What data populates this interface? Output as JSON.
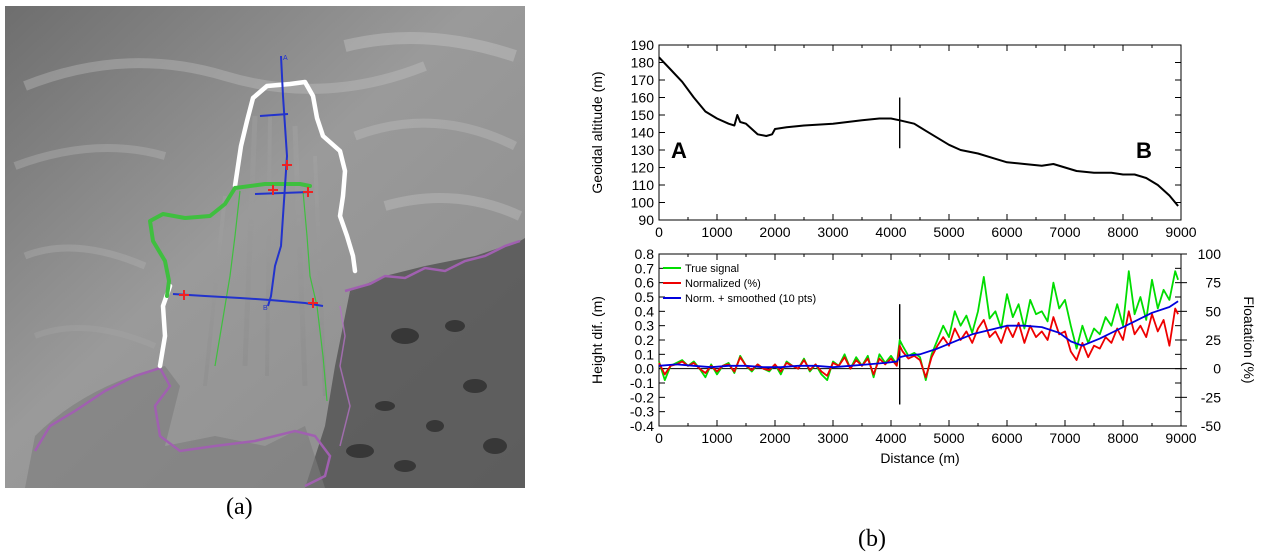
{
  "captions": {
    "a": "(a)",
    "b": "(b)"
  },
  "map": {
    "profile_labels": [
      "A",
      "B"
    ],
    "colors": {
      "background": "#8a8a8a",
      "outline_white": "#ffffff",
      "outline_green": "#3fbf3f",
      "profile_blue": "#2233cc",
      "markers_red": "#ee2222",
      "coast_purple": "#a060b0",
      "sea_dark": "#4a4a4a"
    }
  },
  "chart_data": [
    {
      "type": "line",
      "title": "",
      "xlabel": "",
      "ylabel": "Geoidal altitude (m)",
      "xlim": [
        0,
        9000
      ],
      "ylim": [
        90,
        190
      ],
      "xticks": [
        0,
        1000,
        2000,
        3000,
        4000,
        5000,
        6000,
        7000,
        8000,
        9000
      ],
      "yticks": [
        90,
        100,
        110,
        120,
        130,
        140,
        150,
        160,
        170,
        180,
        190
      ],
      "annotations": {
        "left": "A",
        "right": "B",
        "marker_x": 4150,
        "marker_range": [
          131,
          160
        ]
      },
      "series": [
        {
          "color": "#000000",
          "x": [
            0,
            200,
            400,
            600,
            800,
            1000,
            1200,
            1300,
            1350,
            1400,
            1500,
            1700,
            1850,
            1950,
            2000,
            2200,
            2500,
            3000,
            3500,
            3800,
            4000,
            4150,
            4400,
            4600,
            4800,
            5000,
            5200,
            5500,
            5800,
            6000,
            6300,
            6600,
            6800,
            7000,
            7200,
            7500,
            7800,
            8000,
            8200,
            8400,
            8600,
            8800,
            8950
          ],
          "y": [
            183,
            176,
            169,
            160,
            152,
            148,
            145,
            144,
            150,
            146,
            145,
            139,
            138,
            139,
            142,
            143,
            144,
            145,
            147,
            148,
            148,
            147,
            145,
            141,
            137,
            133,
            130,
            128,
            125,
            123,
            122,
            121,
            122,
            120,
            118,
            117,
            117,
            116,
            116,
            114,
            110,
            104,
            98
          ]
        }
      ]
    },
    {
      "type": "line",
      "title": "",
      "xlabel": "Distance (m)",
      "ylabel": "Height dif. (m)",
      "y2label": "Floatation (%)",
      "xlim": [
        0,
        9000
      ],
      "ylim": [
        -0.4,
        0.8
      ],
      "y2lim": [
        -50,
        100
      ],
      "xticks": [
        0,
        1000,
        2000,
        3000,
        4000,
        5000,
        6000,
        7000,
        8000,
        9000
      ],
      "yticks": [
        -0.4,
        -0.3,
        -0.2,
        -0.1,
        0.0,
        0.1,
        0.2,
        0.3,
        0.4,
        0.5,
        0.6,
        0.7,
        0.8
      ],
      "ytick_labels": [
        "-0.4",
        "-0.3",
        "-0.2",
        "-0.1",
        "0.0",
        "0.1",
        "0.2",
        "0.3",
        "0.4",
        "0.5",
        "0.6",
        "0.7",
        "0.8"
      ],
      "y2ticks": [
        -50,
        -25,
        0,
        25,
        50,
        75,
        100
      ],
      "legend": "top-left",
      "annotations": {
        "marker_x": 4150,
        "marker_range": [
          -0.25,
          0.45
        ],
        "zero_line": 0
      },
      "series": [
        {
          "name": "True signal",
          "color": "#00dd00",
          "x": [
            0,
            100,
            200,
            300,
            400,
            500,
            600,
            700,
            800,
            900,
            1000,
            1100,
            1200,
            1300,
            1400,
            1500,
            1600,
            1700,
            1800,
            1900,
            2000,
            2100,
            2200,
            2300,
            2400,
            2500,
            2600,
            2700,
            2800,
            2900,
            3000,
            3100,
            3200,
            3300,
            3400,
            3500,
            3600,
            3700,
            3800,
            3900,
            4000,
            4100,
            4150,
            4200,
            4300,
            4400,
            4500,
            4600,
            4700,
            4800,
            4900,
            5000,
            5100,
            5200,
            5300,
            5400,
            5500,
            5600,
            5700,
            5800,
            5900,
            6000,
            6100,
            6200,
            6300,
            6400,
            6500,
            6600,
            6700,
            6800,
            6900,
            7000,
            7100,
            7200,
            7300,
            7400,
            7500,
            7600,
            7700,
            7800,
            7900,
            8000,
            8100,
            8200,
            8300,
            8400,
            8500,
            8600,
            8700,
            8800,
            8900,
            8950
          ],
          "y": [
            0.05,
            -0.08,
            0.02,
            0.04,
            0.06,
            0.02,
            0.05,
            0.0,
            -0.06,
            0.03,
            -0.04,
            0.02,
            0.04,
            -0.03,
            0.09,
            0.02,
            -0.02,
            0.03,
            0.0,
            -0.02,
            0.03,
            -0.04,
            0.05,
            0.02,
            0.0,
            0.07,
            -0.02,
            0.03,
            -0.04,
            -0.08,
            0.05,
            0.02,
            0.1,
            0.0,
            0.08,
            0.02,
            0.09,
            -0.06,
            0.1,
            0.04,
            0.09,
            0.03,
            0.2,
            0.16,
            0.09,
            0.11,
            0.08,
            -0.08,
            0.1,
            0.2,
            0.3,
            0.22,
            0.4,
            0.3,
            0.37,
            0.25,
            0.4,
            0.64,
            0.35,
            0.4,
            0.28,
            0.52,
            0.36,
            0.45,
            0.28,
            0.48,
            0.38,
            0.4,
            0.33,
            0.6,
            0.42,
            0.48,
            0.3,
            0.14,
            0.3,
            0.18,
            0.28,
            0.24,
            0.36,
            0.3,
            0.45,
            0.3,
            0.68,
            0.38,
            0.5,
            0.34,
            0.62,
            0.42,
            0.55,
            0.48,
            0.68,
            0.62
          ]
        },
        {
          "name": "Normalized (%)",
          "color": "#ee0000",
          "x": [
            0,
            100,
            200,
            300,
            400,
            500,
            600,
            700,
            800,
            900,
            1000,
            1100,
            1200,
            1300,
            1400,
            1500,
            1600,
            1700,
            1800,
            1900,
            2000,
            2100,
            2200,
            2300,
            2400,
            2500,
            2600,
            2700,
            2800,
            2900,
            3000,
            3100,
            3200,
            3300,
            3400,
            3500,
            3600,
            3700,
            3800,
            3900,
            4000,
            4100,
            4150,
            4200,
            4300,
            4400,
            4500,
            4600,
            4700,
            4800,
            4900,
            5000,
            5100,
            5200,
            5300,
            5400,
            5500,
            5600,
            5700,
            5800,
            5900,
            6000,
            6100,
            6200,
            6300,
            6400,
            6500,
            6600,
            6700,
            6800,
            6900,
            7000,
            7100,
            7200,
            7300,
            7400,
            7500,
            7600,
            7700,
            7800,
            7900,
            8000,
            8100,
            8200,
            8300,
            8400,
            8500,
            8600,
            8700,
            8800,
            8900,
            8950
          ],
          "y": [
            0.04,
            -0.04,
            0.02,
            0.03,
            0.05,
            0.02,
            0.04,
            0.0,
            -0.03,
            0.02,
            -0.02,
            0.02,
            0.03,
            -0.02,
            0.08,
            0.02,
            -0.01,
            0.03,
            0.0,
            -0.01,
            0.03,
            -0.02,
            0.04,
            0.02,
            0.0,
            0.06,
            -0.01,
            0.03,
            -0.02,
            -0.05,
            0.04,
            0.02,
            0.08,
            0.0,
            0.06,
            0.02,
            0.07,
            -0.04,
            0.07,
            0.03,
            0.07,
            0.02,
            0.16,
            0.12,
            0.07,
            0.09,
            0.06,
            -0.06,
            0.08,
            0.16,
            0.22,
            0.16,
            0.28,
            0.2,
            0.26,
            0.18,
            0.28,
            0.34,
            0.22,
            0.26,
            0.18,
            0.3,
            0.22,
            0.32,
            0.18,
            0.3,
            0.22,
            0.26,
            0.2,
            0.36,
            0.24,
            0.26,
            0.12,
            0.06,
            0.18,
            0.08,
            0.16,
            0.14,
            0.22,
            0.18,
            0.28,
            0.2,
            0.4,
            0.24,
            0.3,
            0.22,
            0.38,
            0.26,
            0.34,
            0.16,
            0.42,
            0.38
          ]
        },
        {
          "name": "Norm. + smoothed (10 pts)",
          "color": "#0000dd",
          "x": [
            0,
            300,
            600,
            900,
            1200,
            1500,
            1800,
            2100,
            2400,
            2700,
            3000,
            3300,
            3600,
            3900,
            4100,
            4150,
            4250,
            4500,
            4800,
            5100,
            5400,
            5700,
            6000,
            6300,
            6600,
            6900,
            7100,
            7300,
            7600,
            7900,
            8200,
            8500,
            8800,
            8950
          ],
          "y": [
            0.02,
            0.03,
            0.02,
            0.01,
            0.02,
            0.02,
            0.01,
            0.01,
            0.02,
            0.02,
            0.01,
            0.02,
            0.03,
            0.04,
            0.05,
            0.08,
            0.09,
            0.1,
            0.14,
            0.19,
            0.24,
            0.27,
            0.3,
            0.3,
            0.29,
            0.25,
            0.19,
            0.16,
            0.21,
            0.27,
            0.33,
            0.39,
            0.43,
            0.47
          ]
        }
      ]
    }
  ]
}
